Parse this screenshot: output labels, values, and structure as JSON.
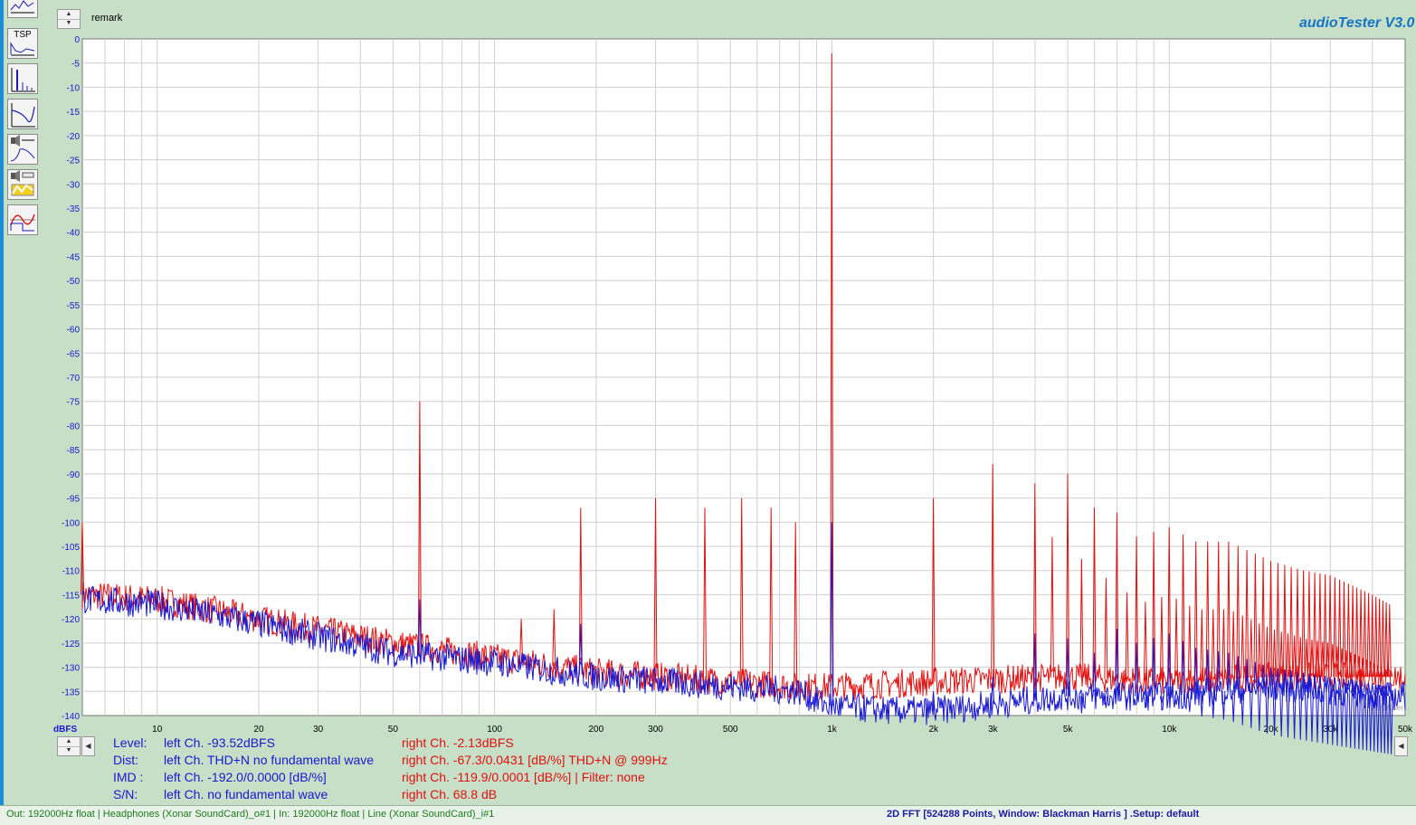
{
  "app": {
    "title": "audioTester  V3.0",
    "remark_label": "remark"
  },
  "toolbar": {
    "items": [
      {
        "icon": "spectrum-view-icon"
      },
      {
        "icon": "tsp-icon",
        "label": "TSP"
      },
      {
        "icon": "fft-icon"
      },
      {
        "icon": "frequency-response-icon"
      },
      {
        "icon": "speaker-response-icon"
      },
      {
        "icon": "speaker-sweep-icon"
      },
      {
        "icon": "waveform-icon"
      }
    ]
  },
  "chart_data": {
    "type": "line",
    "title": "",
    "xlabel": "",
    "ylabel": "dBFS",
    "xscale": "log",
    "xlim": [
      6,
      50000
    ],
    "ylim": [
      -140,
      0
    ],
    "grid": true,
    "yticks": [
      0,
      -5,
      -10,
      -15,
      -20,
      -25,
      -30,
      -35,
      -40,
      -45,
      -50,
      -55,
      -60,
      -65,
      -70,
      -75,
      -80,
      -85,
      -90,
      -95,
      -100,
      -105,
      -110,
      -115,
      -120,
      -125,
      -130,
      -135,
      -140
    ],
    "xticks": [
      {
        "v": 10,
        "label": "10"
      },
      {
        "v": 20,
        "label": "20"
      },
      {
        "v": 30,
        "label": "30"
      },
      {
        "v": 50,
        "label": "50"
      },
      {
        "v": 100,
        "label": "100"
      },
      {
        "v": 200,
        "label": "200"
      },
      {
        "v": 300,
        "label": "300"
      },
      {
        "v": 500,
        "label": "500"
      },
      {
        "v": 1000,
        "label": "1k"
      },
      {
        "v": 2000,
        "label": "2k"
      },
      {
        "v": 3000,
        "label": "3k"
      },
      {
        "v": 5000,
        "label": "5k"
      },
      {
        "v": 10000,
        "label": "10k"
      },
      {
        "v": 20000,
        "label": "20k"
      },
      {
        "v": 30000,
        "label": "30k"
      },
      {
        "v": 50000,
        "label": "50k"
      }
    ],
    "watermark": "© U.Müller",
    "series": [
      {
        "color": "#e01010",
        "floor": [
          [
            6,
            -115
          ],
          [
            10,
            -116
          ],
          [
            20,
            -120
          ],
          [
            50,
            -125
          ],
          [
            100,
            -128
          ],
          [
            200,
            -131
          ],
          [
            500,
            -133
          ],
          [
            800,
            -134
          ],
          [
            1000,
            -134
          ],
          [
            2000,
            -133
          ],
          [
            5000,
            -132
          ],
          [
            10000,
            -133
          ],
          [
            20000,
            -132
          ],
          [
            45000,
            -132
          ]
        ],
        "peaks": [
          [
            6,
            -100
          ],
          [
            60,
            -75
          ],
          [
            120,
            -120
          ],
          [
            150,
            -118
          ],
          [
            180,
            -97
          ],
          [
            300,
            -95
          ],
          [
            420,
            -97
          ],
          [
            540,
            -95
          ],
          [
            660,
            -97
          ],
          [
            780,
            -100
          ],
          [
            999,
            -3
          ]
        ],
        "harmonics": {
          "f0": 999,
          "from": 2,
          "to": 45,
          "envelope": [
            [
              1800,
              -96
            ],
            [
              2000,
              -95
            ],
            [
              2500,
              -87
            ],
            [
              3000,
              -88
            ],
            [
              3500,
              -92
            ],
            [
              4000,
              -92
            ],
            [
              4500,
              -89
            ],
            [
              5000,
              -90
            ],
            [
              6000,
              -97
            ],
            [
              7000,
              -98
            ],
            [
              8000,
              -103
            ],
            [
              10000,
              -101
            ],
            [
              12000,
              -104
            ],
            [
              15000,
              -104
            ],
            [
              20000,
              -108
            ],
            [
              25000,
              -110
            ],
            [
              30000,
              -111
            ],
            [
              40000,
              -115
            ],
            [
              45000,
              -117
            ]
          ]
        }
      },
      {
        "color": "#1818d0",
        "floor": [
          [
            6,
            -116
          ],
          [
            10,
            -117
          ],
          [
            20,
            -121
          ],
          [
            50,
            -127
          ],
          [
            100,
            -129
          ],
          [
            200,
            -132
          ],
          [
            500,
            -134
          ],
          [
            800,
            -135
          ],
          [
            900,
            -137
          ],
          [
            1000,
            -138
          ],
          [
            1500,
            -139
          ],
          [
            2000,
            -139
          ],
          [
            5000,
            -136
          ],
          [
            10000,
            -136
          ],
          [
            20000,
            -134
          ],
          [
            45000,
            -136
          ]
        ],
        "peaks": [
          [
            60,
            -116
          ],
          [
            180,
            -121
          ],
          [
            999,
            -100
          ]
        ],
        "harmonics": {
          "f0": 999,
          "from": 2,
          "to": 45,
          "envelope": [
            [
              2000,
              -135
            ],
            [
              3000,
              -132
            ],
            [
              4000,
              -123
            ],
            [
              5000,
              -124
            ],
            [
              6000,
              -127
            ],
            [
              7000,
              -122
            ],
            [
              8000,
              -125
            ],
            [
              10000,
              -123
            ],
            [
              12000,
              -126
            ],
            [
              15000,
              -127
            ],
            [
              20000,
              -130
            ],
            [
              30000,
              -132
            ],
            [
              45000,
              -134
            ]
          ]
        }
      }
    ]
  },
  "readout": {
    "level": {
      "label": "Level:",
      "left": "left Ch. -93.52dBFS",
      "right": "right Ch. -2.13dBFS"
    },
    "dist": {
      "label": "Dist:",
      "left": "left Ch. THD+N  no fundamental wave",
      "right": "right Ch. -67.3/0.0431 [dB/%] THD+N  @ 999Hz"
    },
    "imd": {
      "label": "IMD  :",
      "left": "left Ch. -192.0/0.0000 [dB/%]",
      "right": "right Ch. -119.9/0.0001 [dB/%] |   Filter: none"
    },
    "sn": {
      "label": "S/N:",
      "left": "left Ch.  no fundamental wave",
      "right": "right Ch. 68.8 dB"
    }
  },
  "status": {
    "left": "Out: 192000Hz float  | Headphones (Xonar SoundCard)_o#1 | In: 192000Hz float  | Line (Xonar SoundCard)_i#1",
    "right": "2D FFT [524288 Points, Window: Blackman Harris ]  .Setup:  default"
  }
}
